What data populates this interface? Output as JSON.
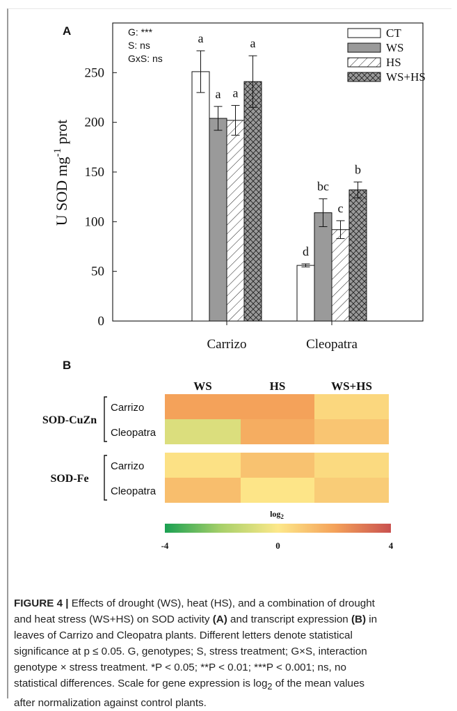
{
  "chart_data": [
    {
      "panel": "A",
      "type": "bar",
      "stats_text": [
        "G: ***",
        "S: ns",
        "GxS: ns"
      ],
      "ylabel_main": "U SOD mg",
      "ylabel_sup": "-1",
      "ylabel_tail": " prot",
      "ylim": [
        0,
        300
      ],
      "yticks": [
        0,
        50,
        100,
        150,
        200,
        250
      ],
      "categories": [
        "Carrizo",
        "Cleopatra"
      ],
      "series": [
        {
          "name": "CT",
          "values": [
            251,
            56
          ],
          "errors": [
            21,
            1.5
          ],
          "letters": [
            "a",
            "d"
          ],
          "fill": "#ffffff"
        },
        {
          "name": "WS",
          "values": [
            204,
            109
          ],
          "errors": [
            12,
            14
          ],
          "letters": [
            "a",
            "bc"
          ],
          "fill": "#9a9a9a"
        },
        {
          "name": "HS",
          "values": [
            202,
            92
          ],
          "errors": [
            15,
            9
          ],
          "letters": [
            "a",
            "c"
          ],
          "fill": "hatch"
        },
        {
          "name": "WS+HS",
          "values": [
            241,
            132
          ],
          "errors": [
            26,
            8
          ],
          "letters": [
            "a",
            "b"
          ],
          "fill": "crosshatch"
        }
      ],
      "legend_position": "top-right",
      "grid": false
    },
    {
      "panel": "B",
      "type": "heatmap",
      "columns": [
        "WS",
        "HS",
        "WS+HS"
      ],
      "groups": [
        {
          "name": "SOD-CuZn",
          "rows": [
            {
              "label": "Carrizo",
              "values": [
                2.0,
                2.0,
                0.5
              ]
            },
            {
              "label": "Cleopatra",
              "values": [
                -0.8,
                1.7,
                1.0
              ]
            }
          ]
        },
        {
          "name": "SOD-Fe",
          "rows": [
            {
              "label": "Carrizo",
              "values": [
                0.2,
                1.1,
                0.4
              ]
            },
            {
              "label": "Cleopatra",
              "values": [
                1.2,
                0.1,
                0.8
              ]
            }
          ]
        }
      ],
      "scale_label_main": "log",
      "scale_label_sub": "2",
      "scale_min": -4,
      "scale_max": 4,
      "scale_ticks": [
        "-4",
        "0",
        "4"
      ],
      "colors": {
        "low": "#1aa052",
        "mid": "#fde88a",
        "high": "#c9514f"
      }
    }
  ],
  "caption": {
    "label": "FIGURE 4 |",
    "lines": [
      " Effects of drought (WS), heat (HS), and a combination of drought",
      "and heat stress (WS+HS) on SOD activity ",
      "(A)",
      " and transcript expression ",
      "(B)",
      " in",
      "leaves of Carrizo and Cleopatra plants. Different letters denote statistical",
      "significance at p ≤ 0.05. G, genotypes; S, stress treatment; G×S, interaction",
      "genotype × stress treatment. *P < 0.05; **P < 0.01; ***P < 0.001; ns, no",
      "statistical differences. Scale for gene expression is log",
      "2",
      " of the mean values",
      "after normalization against control plants."
    ]
  }
}
